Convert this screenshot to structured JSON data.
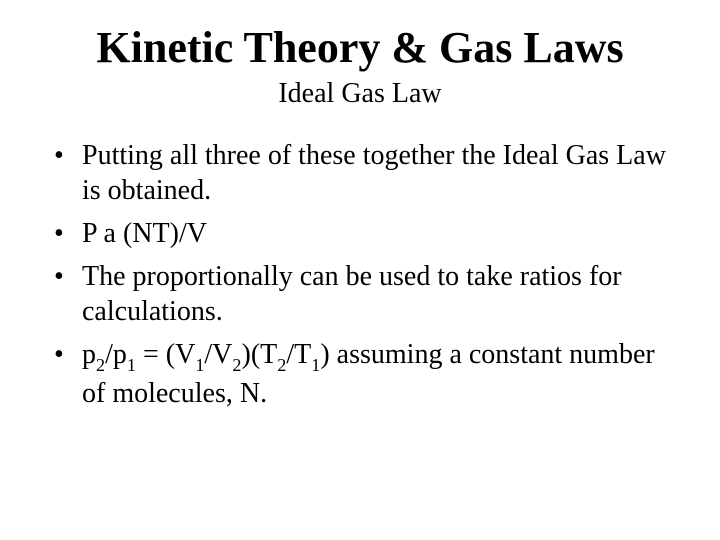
{
  "colors": {
    "background": "#ffffff",
    "text": "#000000"
  },
  "typography": {
    "family": "Times New Roman",
    "title_size_pt": 44,
    "subtitle_size_pt": 28,
    "body_size_pt": 28
  },
  "title": "Kinetic Theory & Gas Laws",
  "subtitle": "Ideal Gas Law",
  "bullets": {
    "b1": "Putting all three of these together the Ideal Gas Law is obtained.",
    "b2": {
      "pre": "P ",
      "prop": "a",
      "post": " (NT)/V"
    },
    "b3": "The proportionally can be used to take ratios for calculations.",
    "b4": {
      "p": "p",
      "two": "2",
      "slash_p": "/p",
      "one": "1",
      "eq": " = (V",
      "v1": "1",
      "slash_v": "/V",
      "v2": "2",
      "paren_t": ")(T",
      "t2": "2",
      "slash_t": "/T",
      "t1": "1",
      "tail": ") assuming a constant number of molecules, N."
    }
  }
}
